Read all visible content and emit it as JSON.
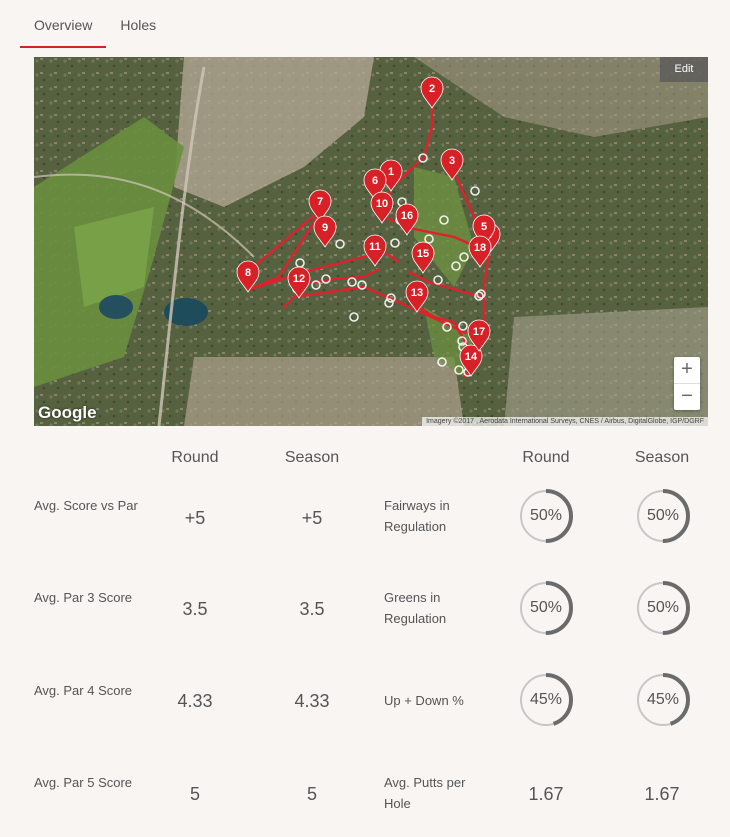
{
  "tabs": [
    {
      "label": "Overview"
    },
    {
      "label": "Holes"
    }
  ],
  "map": {
    "edit_label": "Edit",
    "zoom_in": "+",
    "zoom_out": "−",
    "google_label": "Google",
    "attribution": "Imagery ©2017 , Aerodata International Surveys, CNES / Airbus, DigitalGlobe, IGP/DGRF",
    "holes": [
      "1",
      "2",
      "3",
      "4",
      "5",
      "6",
      "7",
      "8",
      "9",
      "10",
      "11",
      "12",
      "13",
      "14",
      "15",
      "16",
      "17",
      "18"
    ]
  },
  "colors": {
    "accent": "#d82027",
    "ring_fill": "#6b6b6b",
    "ring_track": "#c7c7c7"
  },
  "headers": {
    "round_left": "Round",
    "season_left": "Season",
    "round_right": "Round",
    "season_right": "Season"
  },
  "stats": [
    {
      "label": "Avg. Score vs Par",
      "round": "+5",
      "season": "+5"
    },
    {
      "label": "Avg. Par 3 Score",
      "round": "3.5",
      "season": "3.5"
    },
    {
      "label": "Avg. Par 4 Score",
      "round": "4.33",
      "season": "4.33"
    },
    {
      "label": "Avg. Par 5 Score",
      "round": "5",
      "season": "5"
    }
  ],
  "right_stats": [
    {
      "label": "Fairways in Regulation",
      "round": "50%",
      "round_value": 0.5,
      "season": "50%",
      "season_value": 0.5
    },
    {
      "label": "Greens in Regulation",
      "round": "50%",
      "round_value": 0.5,
      "season": "50%",
      "season_value": 0.5
    },
    {
      "label": "Up + Down %",
      "round": "45%",
      "round_value": 0.45,
      "season": "45%",
      "season_value": 0.45
    },
    {
      "label": "Avg. Putts per Hole",
      "round": "1.67",
      "season": "1.67"
    }
  ]
}
